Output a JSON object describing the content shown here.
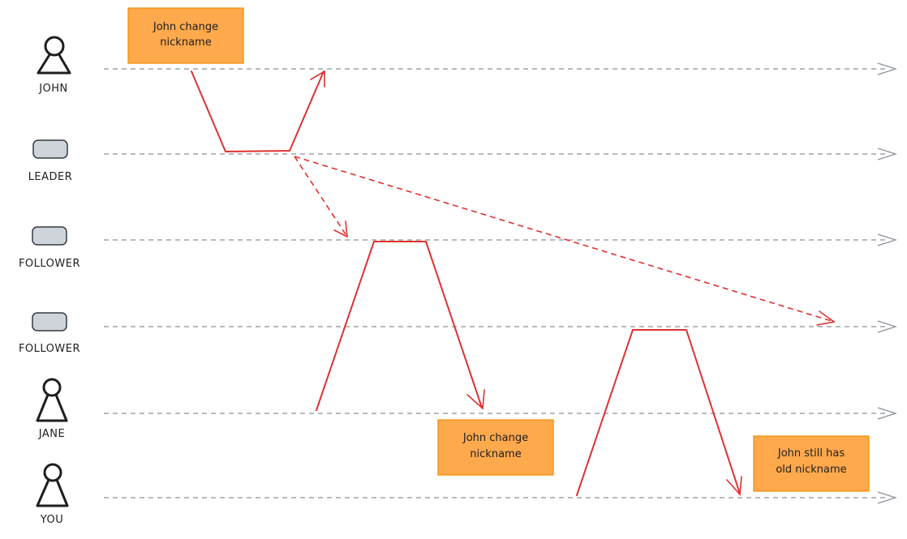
{
  "actors": [
    {
      "label": "JOHN",
      "kind": "person-icon"
    },
    {
      "label": "LEADER",
      "kind": "server-icon"
    },
    {
      "label": "FOLLOWER",
      "kind": "server-icon"
    },
    {
      "label": "FOLLOWER",
      "kind": "server-icon"
    },
    {
      "label": "JANE",
      "kind": "person-icon"
    },
    {
      "label": "YOU",
      "kind": "person-icon"
    }
  ],
  "notes": {
    "john_change": [
      "John change",
      "nickname"
    ],
    "jane_view": [
      "John change",
      "nickname"
    ],
    "you_view": [
      "John still has",
      "old nickname"
    ]
  },
  "colors": {
    "note_fill": "#ffa94d",
    "flow": "#e03131",
    "timeline": "#8b8f98"
  }
}
